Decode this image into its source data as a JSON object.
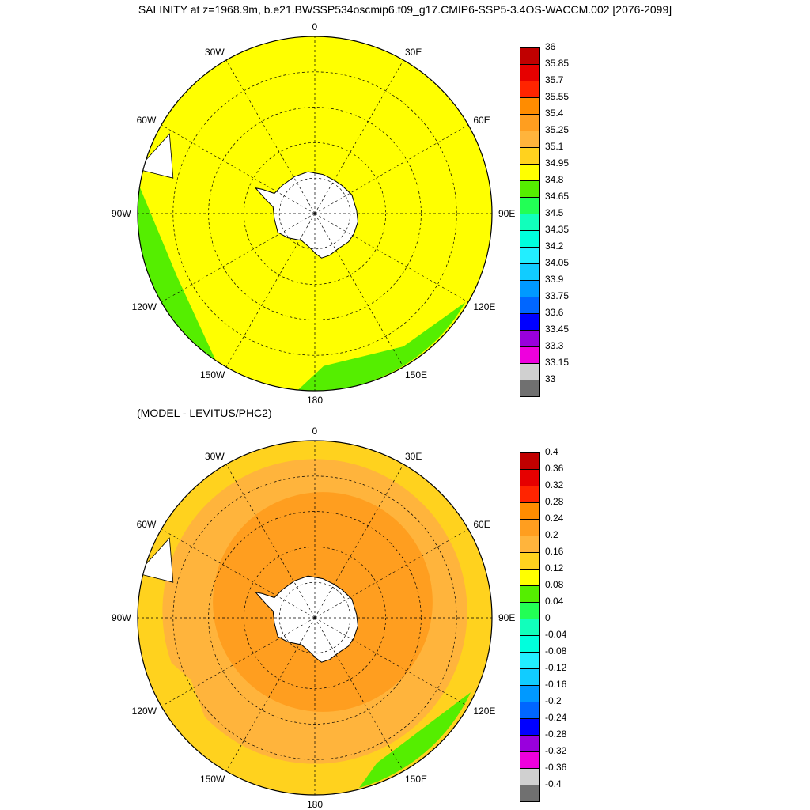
{
  "title": "SALINITY at z=1968.9m, b.e21.BWSSP534oscmip6.f09_g17.CMIP6-SSP5-3.4OS-WACCM.002 [2076-2099]",
  "subtitle": "(MODEL - LEVITUS/PHC2)",
  "lon_labels": [
    "0",
    "30E",
    "60E",
    "90E",
    "120E",
    "150E",
    "180",
    "150W",
    "120W",
    "90W",
    "60W",
    "30W"
  ],
  "colorbar_top": {
    "labels": [
      "36",
      "35.85",
      "35.7",
      "35.55",
      "35.4",
      "35.25",
      "35.1",
      "34.95",
      "34.8",
      "34.65",
      "34.5",
      "34.35",
      "34.2",
      "34.05",
      "33.9",
      "33.75",
      "33.6",
      "33.45",
      "33.3",
      "33.15",
      "33"
    ],
    "colors": [
      "#c00000",
      "#e60000",
      "#ff2400",
      "#ff8c00",
      "#ff9e1f",
      "#ffb43c",
      "#ffd21e",
      "#ffff00",
      "#55ee00",
      "#22ff55",
      "#11ffbb",
      "#00ffdd",
      "#22eeff",
      "#11ccff",
      "#0099ff",
      "#0066ff",
      "#0000ff",
      "#9900dd",
      "#ee00dd",
      "#d0d0d0",
      "#707070"
    ]
  },
  "colorbar_bottom": {
    "labels": [
      "0.4",
      "0.36",
      "0.32",
      "0.28",
      "0.24",
      "0.2",
      "0.16",
      "0.12",
      "0.08",
      "0.04",
      "0",
      "-0.04",
      "-0.08",
      "-0.12",
      "-0.16",
      "-0.2",
      "-0.24",
      "-0.28",
      "-0.32",
      "-0.36",
      "-0.4"
    ],
    "colors": [
      "#c00000",
      "#e60000",
      "#ff2400",
      "#ff8c00",
      "#ff9e1f",
      "#ffb43c",
      "#ffd21e",
      "#ffff00",
      "#55ee00",
      "#22ff55",
      "#11ffbb",
      "#00ffdd",
      "#22eeff",
      "#11ccff",
      "#0099ff",
      "#0066ff",
      "#0000ff",
      "#9900dd",
      "#ee00dd",
      "#d0d0d0",
      "#707070"
    ]
  },
  "map_colors": {
    "top_fill": "#ffff00",
    "top_edge": "#55ee00",
    "bottom_outer": "#ffd21e",
    "bottom_mid": "#ffb43c",
    "bottom_inner": "#ff9e1f",
    "bottom_edge": "#55ee00",
    "land": "#ffffff"
  }
}
